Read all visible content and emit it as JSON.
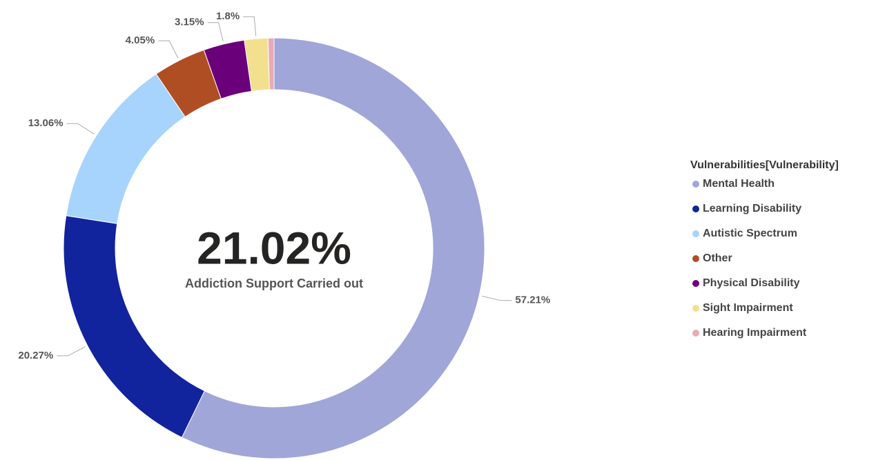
{
  "chart_data": {
    "type": "donut",
    "center_value": "21.02%",
    "center_label": "Addiction Support Carried out",
    "legend_title": "Vulnerabilities[Vulnerability]",
    "legend": "right",
    "categories": [
      "Mental Health",
      "Learning Disability",
      "Autistic Spectrum",
      "Other",
      "Physical Disability",
      "Sight Impairment",
      "Hearing Impairment"
    ],
    "values": [
      57.21,
      20.27,
      13.06,
      4.05,
      3.15,
      1.8,
      0.46
    ],
    "value_labels": [
      "57.21%",
      "20.27%",
      "13.06%",
      "4.05%",
      "3.15%",
      "1.8%",
      null
    ],
    "colors": [
      "#a0a6d8",
      "#12239e",
      "#a6d4fd",
      "#b04e23",
      "#6b007b",
      "#f2e08e",
      "#e8aab5"
    ]
  }
}
